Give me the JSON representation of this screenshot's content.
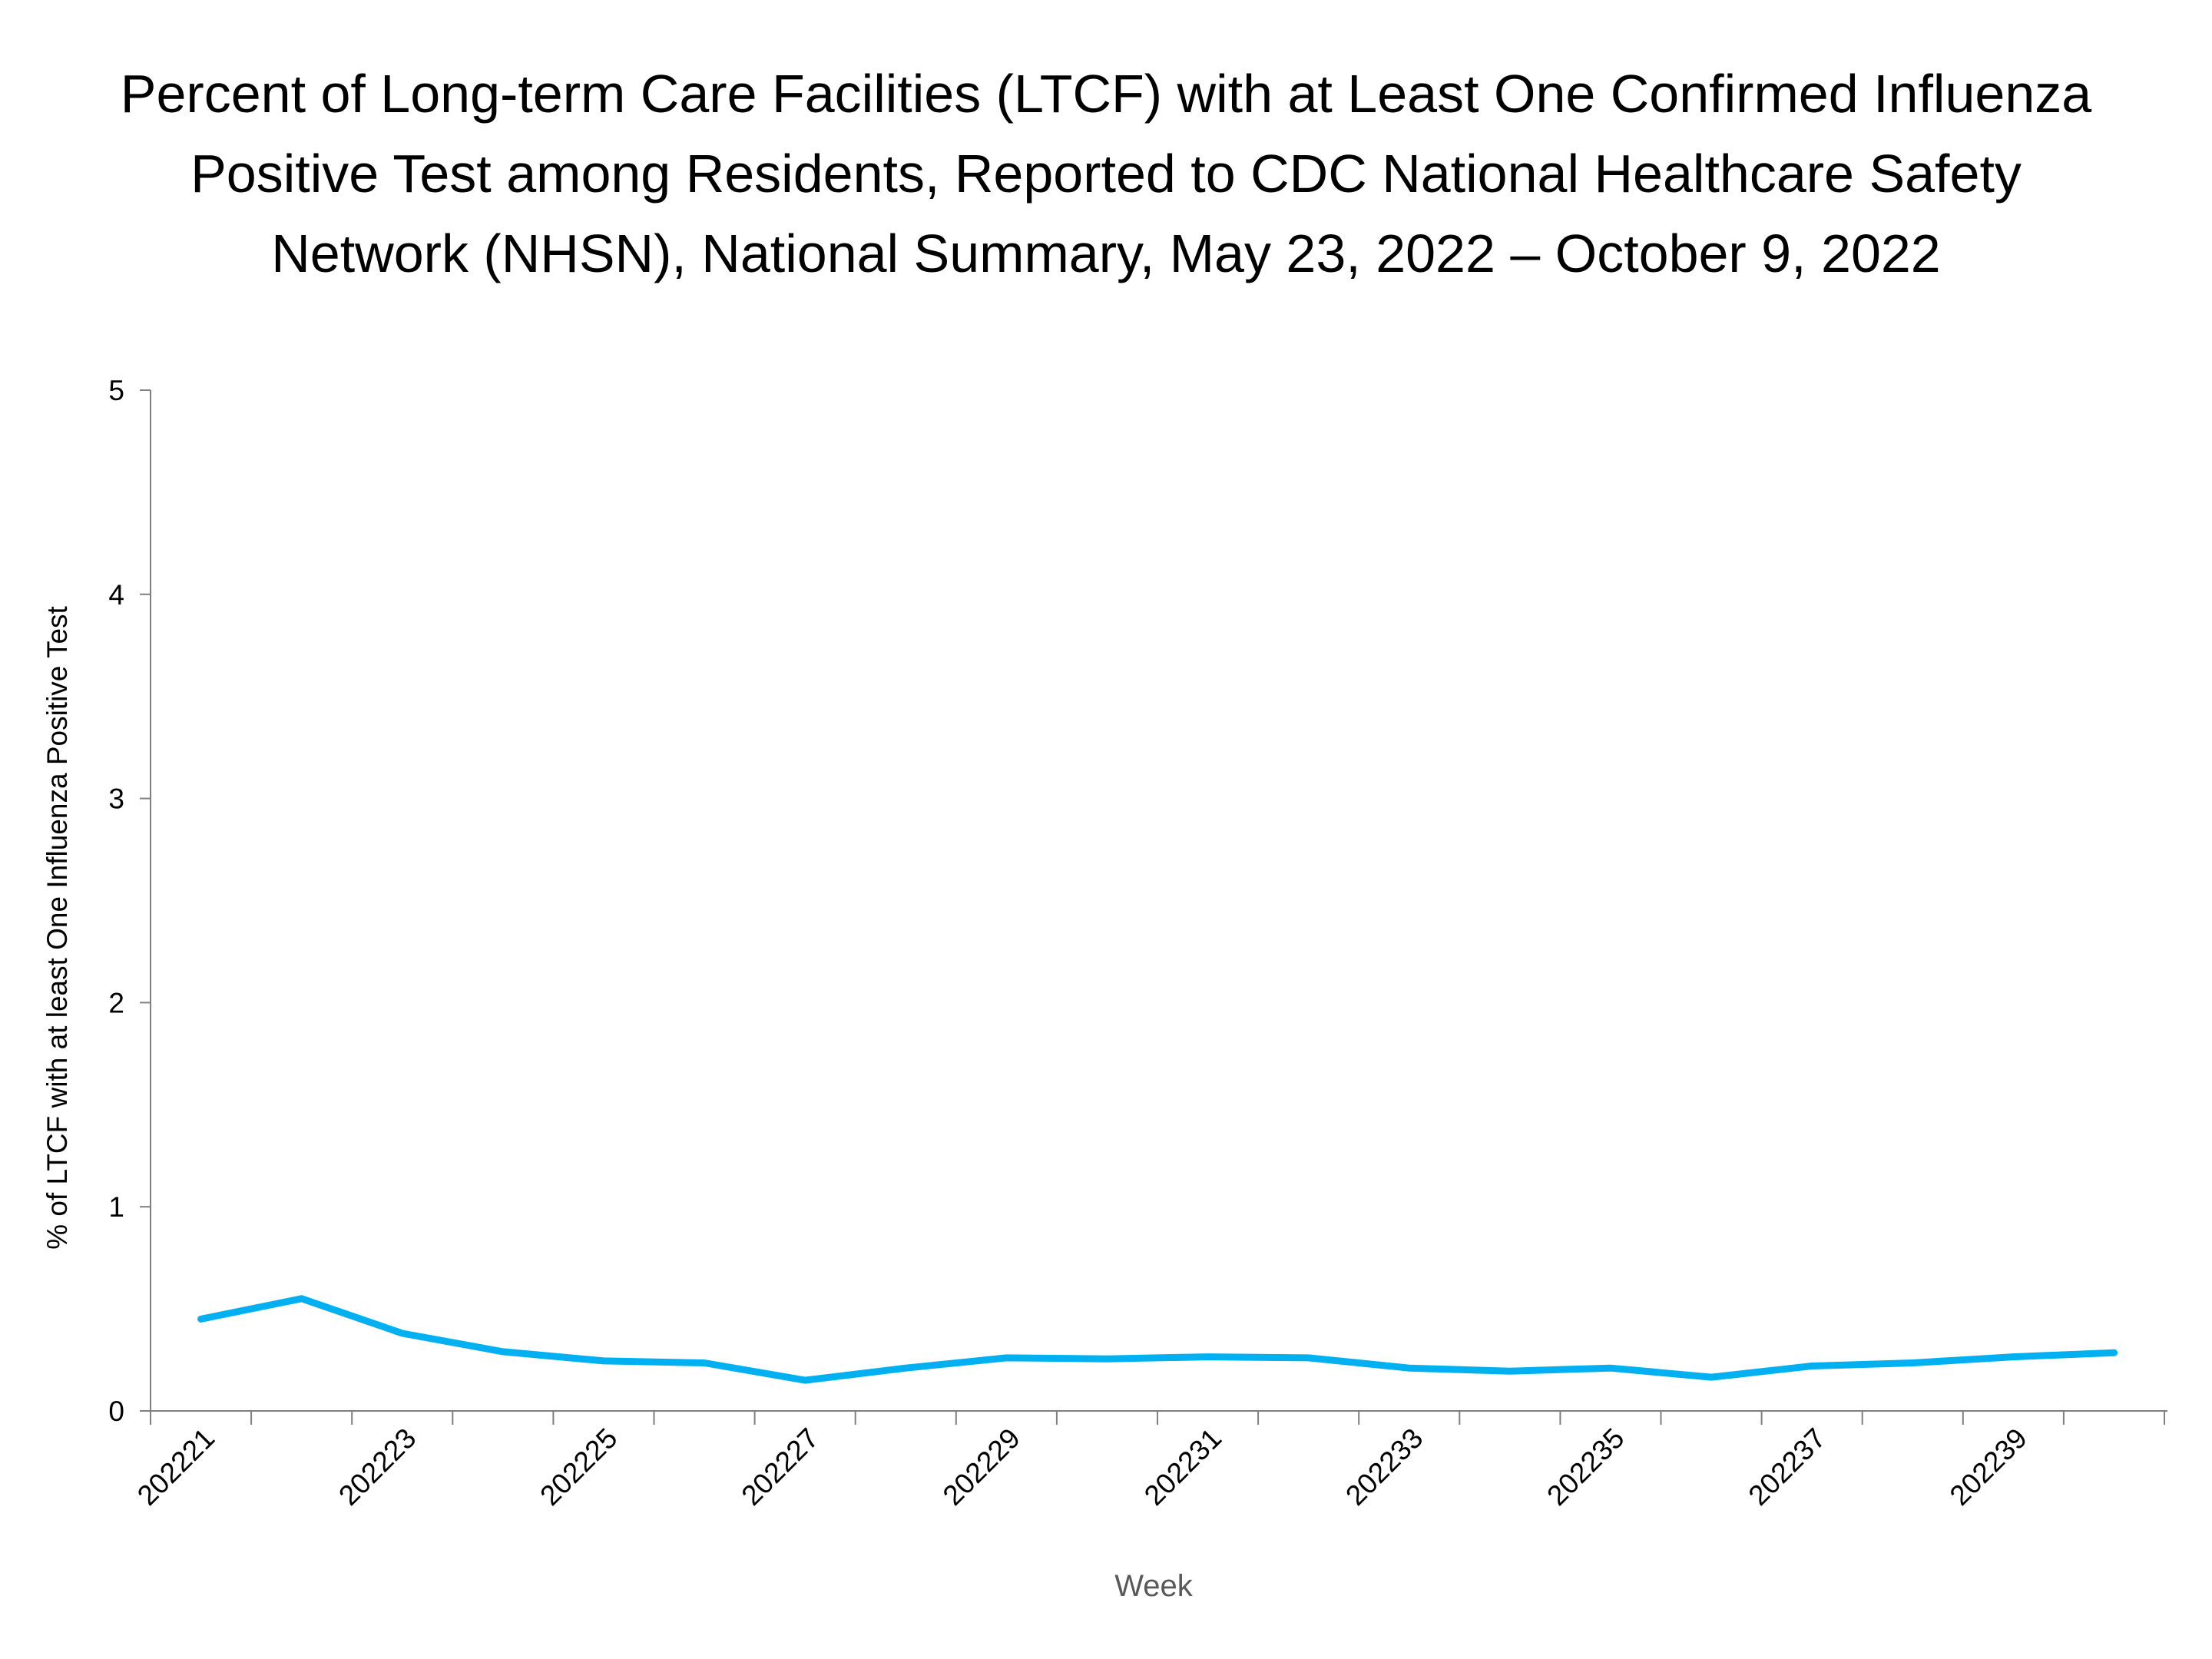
{
  "chart_data": {
    "type": "line",
    "title_lines": [
      "Percent of Long-term Care Facilities (LTCF) with at Least One Confirmed Influenza",
      "Positive Test among Residents, Reported to CDC National Healthcare Safety",
      "Network (NHSN), National Summary, May 23, 2022 – October 9, 2022"
    ],
    "xlabel": "Week",
    "ylabel": "% of LTCF with at least One Influenza Positive Test",
    "ylim": [
      0,
      5
    ],
    "y_ticks": [
      "0",
      "1",
      "2",
      "3",
      "4",
      "5"
    ],
    "categories": [
      "202221",
      "202222",
      "202223",
      "202224",
      "202225",
      "202226",
      "202227",
      "202228",
      "202229",
      "202230",
      "202231",
      "202232",
      "202233",
      "202234",
      "202235",
      "202236",
      "202237",
      "202238",
      "202239",
      "202240"
    ],
    "x_tick_labels_shown": [
      "202221",
      "202223",
      "202225",
      "202227",
      "202229",
      "202231",
      "202233",
      "202235",
      "202237",
      "202239"
    ],
    "series": [
      {
        "color": "#00B0F0",
        "values": [
          0.45,
          0.55,
          0.38,
          0.29,
          0.245,
          0.235,
          0.15,
          0.21,
          0.26,
          0.255,
          0.265,
          0.26,
          0.21,
          0.195,
          0.21,
          0.165,
          0.22,
          0.235,
          0.265,
          0.285
        ]
      }
    ],
    "grid": false,
    "legend": "none",
    "axis_color": "#7f7f7f",
    "xlabel_color": "#595959"
  }
}
